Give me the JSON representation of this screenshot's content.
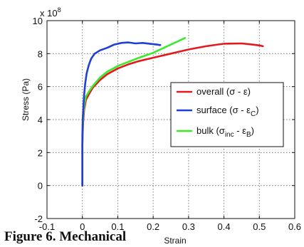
{
  "chart_data": {
    "type": "line",
    "xlabel": "Strain",
    "ylabel": "Stress (Pa)",
    "y_multiplier": "x 10",
    "y_multiplier_exp": "8",
    "xlim": [
      -0.1,
      0.6
    ],
    "ylim": [
      -2,
      10
    ],
    "x_ticks": [
      "-0.1",
      "0",
      "0.1",
      "0.2",
      "0.3",
      "0.4",
      "0.5",
      "0.6"
    ],
    "y_ticks": [
      "-2",
      "0",
      "2",
      "4",
      "6",
      "8",
      "10"
    ],
    "grid": true,
    "legend_position": "center-right",
    "series": [
      {
        "name": "overall",
        "legend_main": "overall (σ - ε)",
        "color": "#e31a1c",
        "x": [
          0.0,
          0.0,
          0.002,
          0.005,
          0.01,
          0.02,
          0.03,
          0.05,
          0.07,
          0.1,
          0.13,
          0.16,
          0.2,
          0.25,
          0.3,
          0.35,
          0.4,
          0.45,
          0.48,
          0.5,
          0.51
        ],
        "y": [
          0.0,
          2.5,
          3.8,
          4.6,
          5.2,
          5.6,
          5.95,
          6.4,
          6.75,
          7.1,
          7.35,
          7.55,
          7.75,
          8.0,
          8.25,
          8.45,
          8.6,
          8.62,
          8.55,
          8.5,
          8.45
        ]
      },
      {
        "name": "surface",
        "legend_main": "surface (σ - ε",
        "legend_sub": "C",
        "legend_tail": ")",
        "color": "#1f3fd6",
        "x": [
          0.0,
          0.0,
          0.001,
          0.003,
          0.005,
          0.008,
          0.012,
          0.018,
          0.025,
          0.035,
          0.05,
          0.07,
          0.09,
          0.11,
          0.13,
          0.15,
          0.17,
          0.19,
          0.21,
          0.22
        ],
        "y": [
          0.0,
          3.0,
          4.0,
          4.8,
          5.5,
          6.2,
          6.8,
          7.3,
          7.7,
          8.0,
          8.2,
          8.35,
          8.55,
          8.65,
          8.68,
          8.62,
          8.65,
          8.6,
          8.55,
          8.52
        ]
      },
      {
        "name": "bulk",
        "legend_main": "bulk (σ",
        "legend_sub": "inc",
        "legend_mid": " - ε",
        "legend_sub2": "B",
        "legend_tail": ")",
        "color": "#3bea2c",
        "x": [
          0.0,
          0.0,
          0.001,
          0.003,
          0.006,
          0.01,
          0.02,
          0.03,
          0.05,
          0.07,
          0.1,
          0.13,
          0.16,
          0.2,
          0.24,
          0.27,
          0.29
        ],
        "y": [
          0.1,
          2.5,
          3.6,
          4.4,
          5.0,
          5.4,
          5.75,
          6.05,
          6.55,
          6.9,
          7.25,
          7.5,
          7.75,
          8.05,
          8.45,
          8.75,
          8.95
        ]
      }
    ]
  },
  "caption": "Figure 6. Mechanical"
}
